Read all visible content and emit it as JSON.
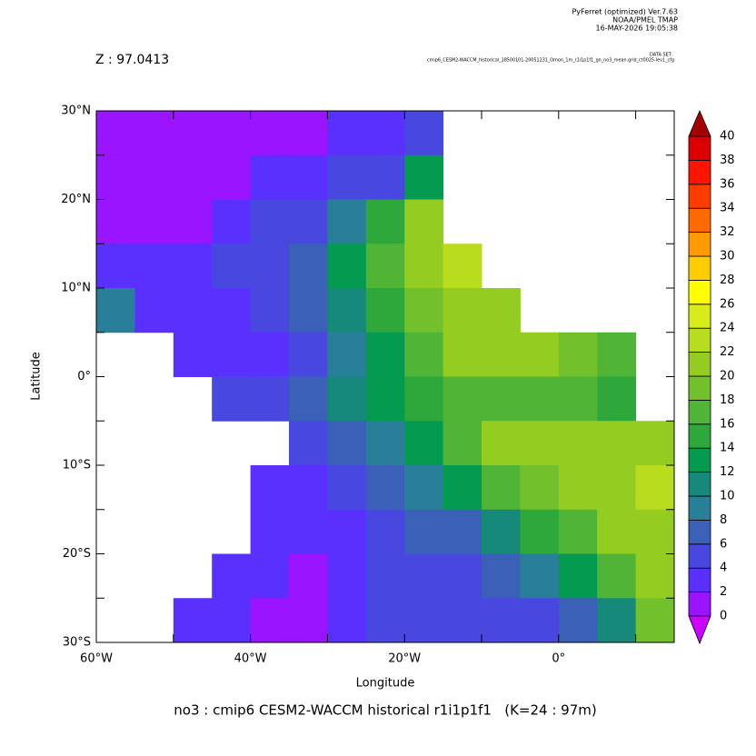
{
  "chart_data": {
    "type": "heatmap",
    "header": [
      "PyFerret (optimized) Ver.7.63",
      "NOAA/PMEL TMAP",
      "16-MAY-2026 19:05:38"
    ],
    "dataset_label": "DATA SET:",
    "dataset": "cmip6_CESM2-WACCM_historical_18500101-20051231_Omon_1m_r1i1p1f1_gn_no3_mean.grid_ct0025-lev1_cfg",
    "subtitle": "Z : 97.0413",
    "title": "no3 : cmip6 CESM2-WACCM historical r1i1p1f1   (K=24 : 97m)",
    "xlabel": "Longitude",
    "ylabel": "Latitude",
    "x": [
      -57.5,
      -52.5,
      -47.5,
      -42.5,
      -37.5,
      -32.5,
      -27.5,
      -22.5,
      -17.5,
      -12.5,
      -7.5,
      -2.5,
      2.5,
      7.5,
      12.5
    ],
    "y": [
      27.5,
      22.5,
      17.5,
      12.5,
      7.5,
      2.5,
      -2.5,
      -7.5,
      -12.5,
      -17.5,
      -22.5,
      -27.5
    ],
    "values": [
      [
        1,
        1,
        1,
        1,
        1,
        1.5,
        3,
        3,
        4,
        null,
        null,
        null,
        null,
        null,
        null
      ],
      [
        1,
        1,
        1,
        1,
        3,
        3,
        4,
        5,
        12,
        null,
        null,
        null,
        null,
        null,
        null
      ],
      [
        1,
        1,
        1,
        3,
        4,
        5,
        8,
        14,
        20,
        null,
        null,
        null,
        null,
        null,
        null
      ],
      [
        3,
        3,
        3,
        4,
        5,
        7,
        12,
        16,
        21,
        23,
        null,
        null,
        null,
        null,
        null
      ],
      [
        8,
        3,
        2,
        3,
        4,
        6,
        10,
        14,
        18,
        21,
        20,
        null,
        null,
        null,
        null
      ],
      [
        null,
        null,
        2,
        2,
        3,
        5,
        9,
        13,
        17,
        20,
        20,
        21,
        19,
        16,
        null
      ],
      [
        null,
        null,
        null,
        4,
        5,
        7,
        10,
        12,
        14,
        16,
        17,
        17,
        16,
        15,
        null
      ],
      [
        null,
        null,
        null,
        null,
        null,
        4,
        6,
        9,
        13,
        17,
        20,
        21,
        21,
        20,
        20
      ],
      [
        null,
        null,
        null,
        null,
        3,
        3,
        5,
        6,
        8,
        12,
        16,
        19,
        20,
        21,
        22
      ],
      [
        null,
        null,
        null,
        null,
        3,
        2,
        3,
        5,
        6,
        7,
        10,
        14,
        17,
        20,
        21
      ],
      [
        null,
        null,
        null,
        3,
        2,
        1,
        2,
        4,
        5,
        5,
        6,
        9,
        13,
        16,
        21
      ],
      [
        null,
        null,
        3,
        3,
        1,
        1,
        3,
        4,
        4,
        4,
        4,
        5,
        7,
        10,
        18
      ]
    ],
    "xlim": [
      -60,
      15
    ],
    "ylim": [
      -30,
      30
    ],
    "xticks": [
      {
        "value": -60,
        "label": "60°W"
      },
      {
        "value": -40,
        "label": "40°W"
      },
      {
        "value": -20,
        "label": "20°W"
      },
      {
        "value": 0,
        "label": "0°"
      }
    ],
    "xminorticks": [
      -50,
      -30,
      -10,
      10
    ],
    "yticks": [
      {
        "value": -30,
        "label": "30°S"
      },
      {
        "value": -20,
        "label": "20°S"
      },
      {
        "value": -10,
        "label": "10°S"
      },
      {
        "value": 0,
        "label": "0°"
      },
      {
        "value": 10,
        "label": "10°N"
      },
      {
        "value": 20,
        "label": "20°N"
      },
      {
        "value": 30,
        "label": "30°N"
      }
    ],
    "yminorticks": [
      -25,
      -15,
      -5,
      5,
      15,
      25
    ],
    "levels": [
      0,
      2,
      4,
      6,
      8,
      10,
      12,
      14,
      16,
      18,
      20,
      22,
      24,
      26,
      28,
      30,
      32,
      34,
      36,
      38,
      40
    ],
    "colors": [
      "#9a14ff",
      "#5a30ff",
      "#4848e0",
      "#3a60b8",
      "#2a7f98",
      "#17897a",
      "#049a50",
      "#2ea83a",
      "#50b436",
      "#72c02c",
      "#95cc22",
      "#b8dc1e",
      "#d8ec1a",
      "#ffff00",
      "#ffcc00",
      "#ff9a00",
      "#ff6a00",
      "#ff3c00",
      "#ff1400",
      "#dc0000"
    ],
    "under_color": "#cc00ff",
    "over_color": "#a40000"
  }
}
